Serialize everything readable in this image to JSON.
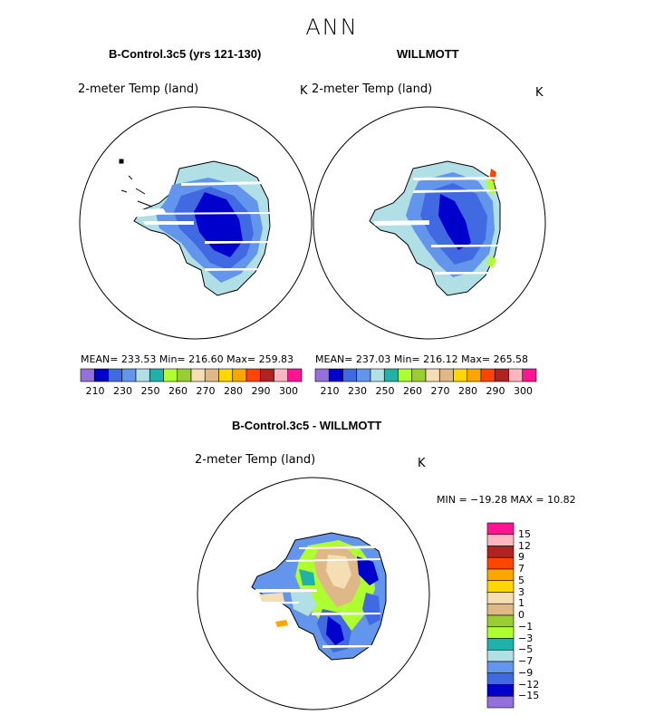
{
  "chart_data": [
    {
      "type": "heatmap",
      "title": "B-Control.3c5 (yrs 121-130)",
      "variable": "2-meter Temp (land)",
      "units": "K",
      "mean": "233.53",
      "min": "216.60",
      "max": "259.83",
      "stats_text": "MEAN= 233.53   Min= 216.60   Max= 259.83",
      "colorbar_ticks": [
        "210",
        "230",
        "250",
        "260",
        "270",
        "280",
        "290",
        "300"
      ]
    },
    {
      "type": "heatmap",
      "title": "WILLMOTT",
      "variable": "2-meter Temp (land)",
      "units": "K",
      "mean": "237.03",
      "min": "216.12",
      "max": "265.58",
      "stats_text": "MEAN= 237.03   Min= 216.12   Max= 265.58",
      "colorbar_ticks": [
        "210",
        "230",
        "250",
        "260",
        "270",
        "280",
        "290",
        "300"
      ]
    },
    {
      "type": "heatmap",
      "title": "B-Control.3c5 - WILLMOTT",
      "variable": "2-meter Temp (land)",
      "units": "K",
      "min": "-19.28",
      "max": "10.82",
      "stats_text": "MIN = −19.28  MAX =   10.82",
      "colorbar_ticks": [
        "15",
        "12",
        "9",
        "7",
        "5",
        "3",
        "1",
        "0",
        "−1",
        "−3",
        "−5",
        "−7",
        "−9",
        "−12",
        "−15"
      ]
    }
  ],
  "figure_title": "ANN",
  "colors": {
    "abs_palette": [
      "#9370db",
      "#0000cd",
      "#4169e1",
      "#6495ed",
      "#b0e0e6",
      "#20b2aa",
      "#adff2f",
      "#9acd32",
      "#f5deb3",
      "#deb887",
      "#ffd700",
      "#ffa500",
      "#ff4500",
      "#b22222",
      "#ffb6c1",
      "#ff1493"
    ],
    "diff_palette": [
      "#ff1493",
      "#ffb6c1",
      "#b22222",
      "#ff4500",
      "#ffa500",
      "#ffd700",
      "#f5deb3",
      "#deb887",
      "#9acd32",
      "#adff2f",
      "#20b2aa",
      "#b0e0e6",
      "#6495ed",
      "#4169e1",
      "#0000cd",
      "#9370db"
    ]
  }
}
